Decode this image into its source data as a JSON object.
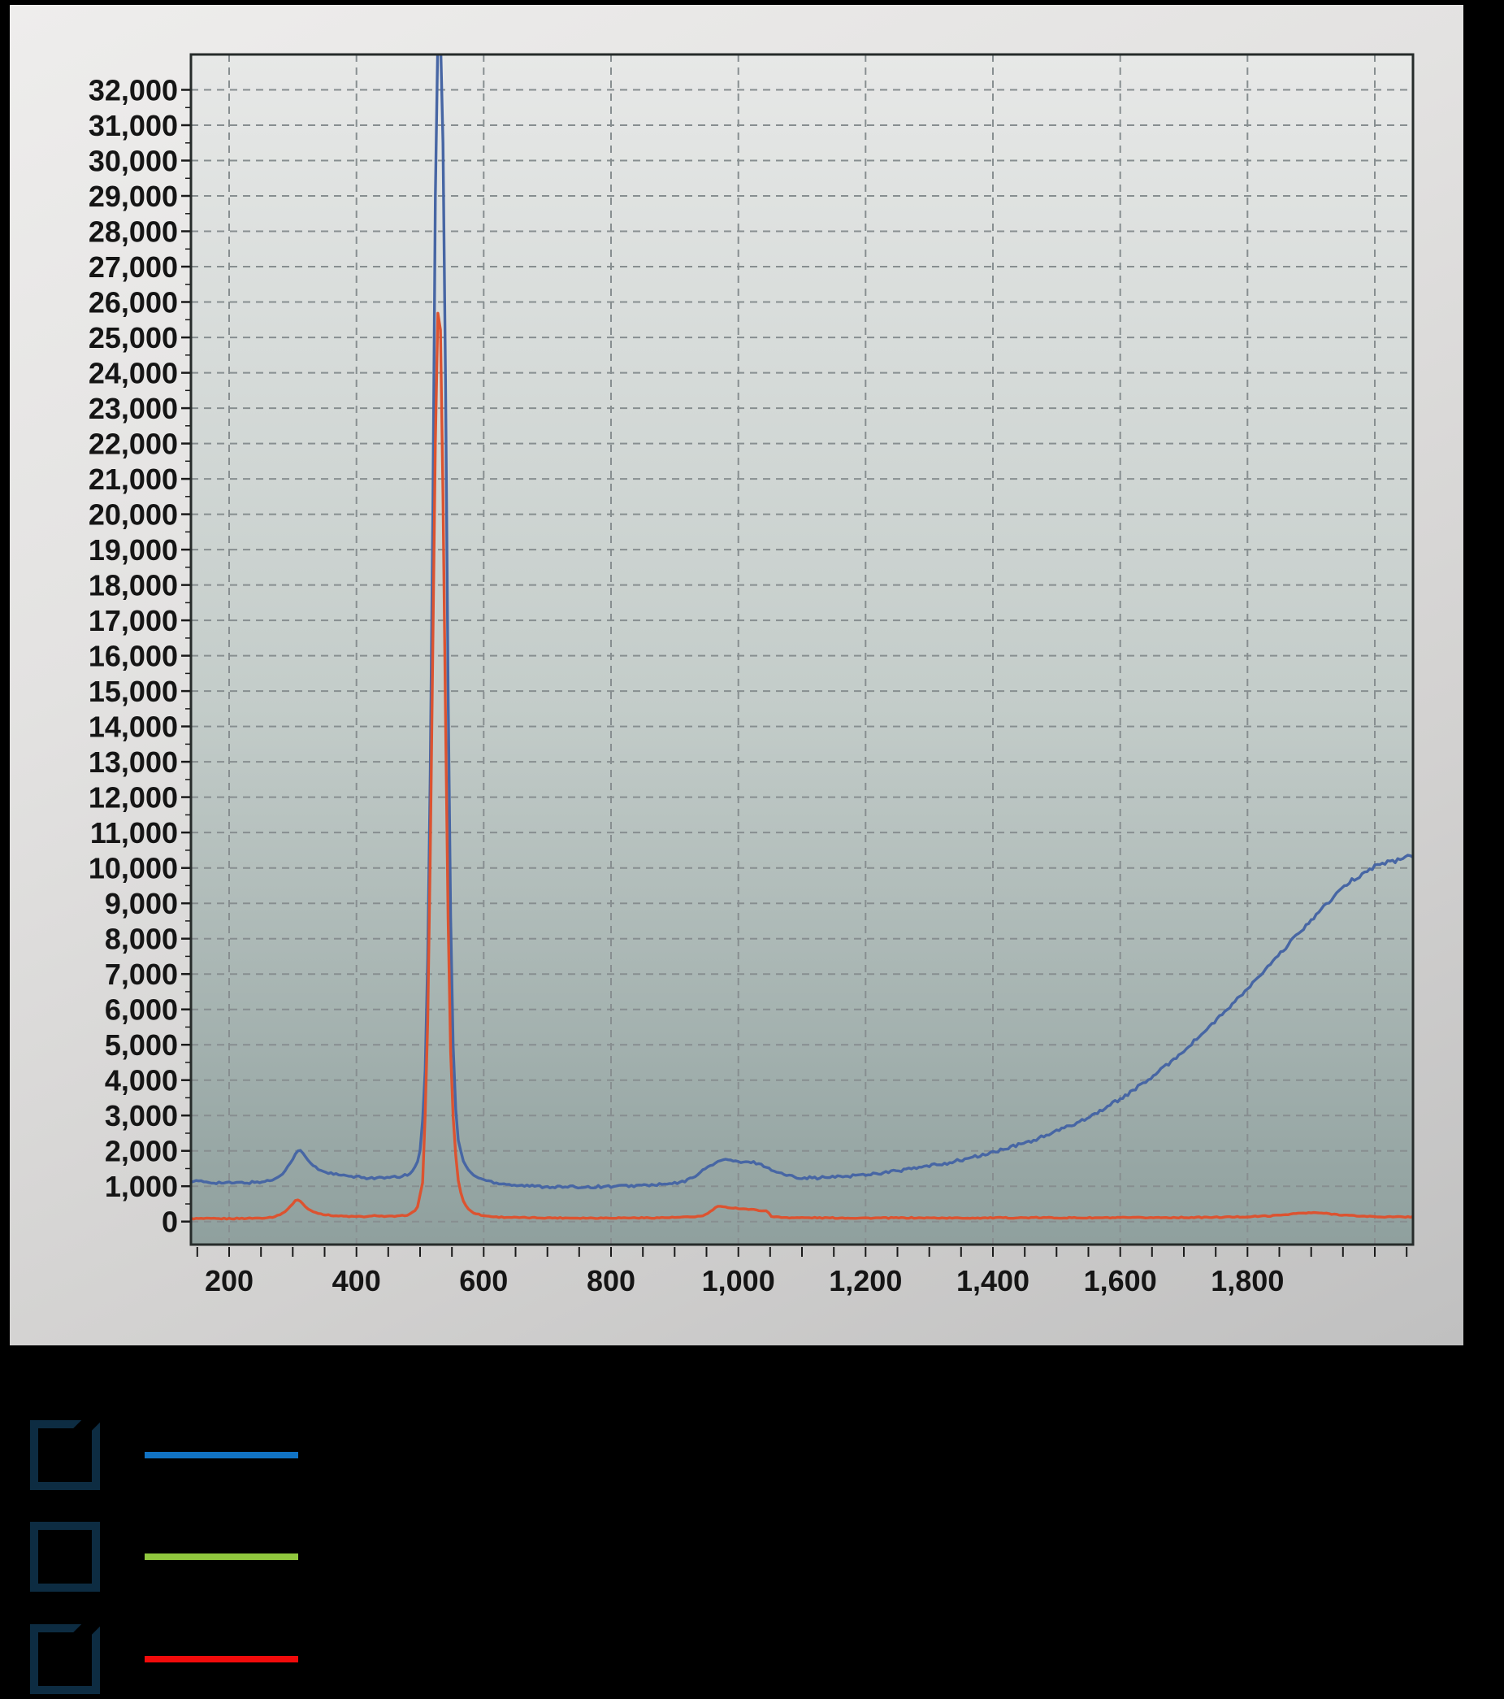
{
  "page": {
    "background": "#000000"
  },
  "panel": {
    "gradient_start": "#eeedec",
    "gradient_end": "#c0c0c0"
  },
  "chart_data": {
    "type": "line",
    "title": "",
    "xlabel": "",
    "ylabel": "",
    "plot_area_background": {
      "top": "#e7e8e7",
      "middle": "#c3ccc9",
      "bottom": "#8fa09e"
    },
    "grid": {
      "show": true,
      "style": "dashed",
      "color": "#878e90",
      "x_step": 200,
      "y_step": 1000
    },
    "x_axis": {
      "range": [
        140,
        2060
      ],
      "minor_tick_step": 50,
      "tick_values": [
        200,
        400,
        600,
        800,
        1000,
        1200,
        1400,
        1600,
        1800
      ],
      "tick_labels": [
        "200",
        "400",
        "600",
        "800",
        "1,000",
        "1,200",
        "1,400",
        "1,600",
        "1,800"
      ],
      "grid_values": [
        200,
        400,
        600,
        800,
        1000,
        1200,
        1400,
        1600,
        1800,
        2000
      ]
    },
    "y_axis": {
      "range": [
        -650,
        33000
      ],
      "minor_tick_step": 500,
      "tick_values": [
        0,
        1000,
        2000,
        3000,
        4000,
        5000,
        6000,
        7000,
        8000,
        9000,
        10000,
        11000,
        12000,
        13000,
        14000,
        15000,
        16000,
        17000,
        18000,
        19000,
        20000,
        21000,
        22000,
        23000,
        24000,
        25000,
        26000,
        27000,
        28000,
        29000,
        30000,
        31000,
        32000
      ],
      "tick_labels": [
        "0",
        "1,000",
        "2,000",
        "3,000",
        "4,000",
        "5,000",
        "6,000",
        "7,000",
        "8,000",
        "9,000",
        "10,000",
        "11,000",
        "12,000",
        "13,000",
        "14,000",
        "15,000",
        "16,000",
        "17,000",
        "18,000",
        "19,000",
        "20,000",
        "21,000",
        "22,000",
        "23,000",
        "24,000",
        "25,000",
        "26,000",
        "27,000",
        "28,000",
        "29,000",
        "30,000",
        "31,000",
        "32,000"
      ]
    },
    "series": [
      {
        "name": "blue-trace",
        "color": "#4766a4",
        "stroke_width": 3.4,
        "anchor_points": [
          [
            140,
            1150
          ],
          [
            170,
            1110
          ],
          [
            200,
            1090
          ],
          [
            230,
            1100
          ],
          [
            255,
            1130
          ],
          [
            272,
            1200
          ],
          [
            285,
            1380
          ],
          [
            296,
            1650
          ],
          [
            305,
            1930
          ],
          [
            311,
            2040
          ],
          [
            318,
            1880
          ],
          [
            328,
            1640
          ],
          [
            342,
            1460
          ],
          [
            360,
            1360
          ],
          [
            385,
            1280
          ],
          [
            415,
            1240
          ],
          [
            445,
            1230
          ],
          [
            470,
            1270
          ],
          [
            487,
            1380
          ],
          [
            499,
            1800
          ],
          [
            507,
            3500
          ],
          [
            514,
            9000
          ],
          [
            520,
            20000
          ],
          [
            526,
            33500
          ],
          [
            534,
            33500
          ],
          [
            539,
            26000
          ],
          [
            544,
            15000
          ],
          [
            549,
            7000
          ],
          [
            554,
            3600
          ],
          [
            560,
            2300
          ],
          [
            568,
            1700
          ],
          [
            578,
            1400
          ],
          [
            592,
            1230
          ],
          [
            615,
            1110
          ],
          [
            650,
            1030
          ],
          [
            690,
            990
          ],
          [
            730,
            975
          ],
          [
            775,
            985
          ],
          [
            820,
            1005
          ],
          [
            860,
            1030
          ],
          [
            893,
            1060
          ],
          [
            915,
            1130
          ],
          [
            933,
            1300
          ],
          [
            950,
            1520
          ],
          [
            968,
            1700
          ],
          [
            983,
            1760
          ],
          [
            995,
            1700
          ],
          [
            1008,
            1660
          ],
          [
            1020,
            1690
          ],
          [
            1034,
            1630
          ],
          [
            1048,
            1500
          ],
          [
            1062,
            1390
          ],
          [
            1078,
            1300
          ],
          [
            1095,
            1250
          ],
          [
            1125,
            1235
          ],
          [
            1160,
            1270
          ],
          [
            1200,
            1330
          ],
          [
            1245,
            1420
          ],
          [
            1290,
            1540
          ],
          [
            1335,
            1680
          ],
          [
            1380,
            1860
          ],
          [
            1425,
            2080
          ],
          [
            1470,
            2340
          ],
          [
            1515,
            2660
          ],
          [
            1560,
            3040
          ],
          [
            1605,
            3520
          ],
          [
            1650,
            4080
          ],
          [
            1695,
            4750
          ],
          [
            1740,
            5500
          ],
          [
            1785,
            6300
          ],
          [
            1830,
            7150
          ],
          [
            1875,
            8050
          ],
          [
            1920,
            8900
          ],
          [
            1960,
            9600
          ],
          [
            2000,
            10050
          ],
          [
            2030,
            10200
          ],
          [
            2060,
            10350
          ]
        ]
      },
      {
        "name": "red-trace",
        "color": "#dc5330",
        "stroke_width": 3.4,
        "anchor_points": [
          [
            140,
            85
          ],
          [
            180,
            80
          ],
          [
            220,
            90
          ],
          [
            250,
            100
          ],
          [
            270,
            130
          ],
          [
            285,
            240
          ],
          [
            297,
            440
          ],
          [
            306,
            640
          ],
          [
            313,
            560
          ],
          [
            322,
            370
          ],
          [
            335,
            260
          ],
          [
            352,
            190
          ],
          [
            375,
            155
          ],
          [
            400,
            140
          ],
          [
            420,
            140
          ],
          [
            432,
            175
          ],
          [
            445,
            145
          ],
          [
            465,
            150
          ],
          [
            482,
            190
          ],
          [
            495,
            340
          ],
          [
            504,
            1100
          ],
          [
            511,
            4500
          ],
          [
            517,
            11500
          ],
          [
            522,
            19500
          ],
          [
            527,
            25800
          ],
          [
            533,
            25100
          ],
          [
            538,
            17500
          ],
          [
            543,
            9500
          ],
          [
            548,
            4800
          ],
          [
            553,
            2500
          ],
          [
            559,
            1250
          ],
          [
            566,
            650
          ],
          [
            574,
            380
          ],
          [
            584,
            250
          ],
          [
            598,
            170
          ],
          [
            620,
            130
          ],
          [
            660,
            110
          ],
          [
            710,
            105
          ],
          [
            760,
            100
          ],
          [
            810,
            105
          ],
          [
            860,
            105
          ],
          [
            900,
            115
          ],
          [
            925,
            130
          ],
          [
            945,
            160
          ],
          [
            958,
            300
          ],
          [
            966,
            430
          ],
          [
            980,
            405
          ],
          [
            1000,
            375
          ],
          [
            1020,
            340
          ],
          [
            1038,
            310
          ],
          [
            1046,
            290
          ],
          [
            1052,
            150
          ],
          [
            1065,
            120
          ],
          [
            1090,
            110
          ],
          [
            1140,
            105
          ],
          [
            1200,
            100
          ],
          [
            1270,
            105
          ],
          [
            1340,
            100
          ],
          [
            1410,
            105
          ],
          [
            1480,
            110
          ],
          [
            1550,
            105
          ],
          [
            1620,
            110
          ],
          [
            1690,
            115
          ],
          [
            1745,
            120
          ],
          [
            1795,
            135
          ],
          [
            1840,
            165
          ],
          [
            1880,
            235
          ],
          [
            1910,
            250
          ],
          [
            1935,
            210
          ],
          [
            1965,
            165
          ],
          [
            2000,
            140
          ],
          [
            2030,
            130
          ],
          [
            2060,
            135
          ]
        ]
      }
    ],
    "noise": {
      "blue_base_amplitude": 36,
      "blue_tail_amplitude": 94,
      "tail_start_x": 1050,
      "red_amplitude": 15
    },
    "legend_position": "bottom-outside"
  },
  "legend": {
    "checkbox_border_color": "#0d2c42",
    "items": [
      {
        "id": "blue",
        "line_color": "#1173c4",
        "checked": true,
        "label": "",
        "label_visible": false
      },
      {
        "id": "green",
        "line_color": "#90c73e",
        "checked": false,
        "label": "",
        "label_visible": false
      },
      {
        "id": "red",
        "line_color": "#f20b0b",
        "checked": true,
        "label": "",
        "label_visible": false
      }
    ]
  }
}
